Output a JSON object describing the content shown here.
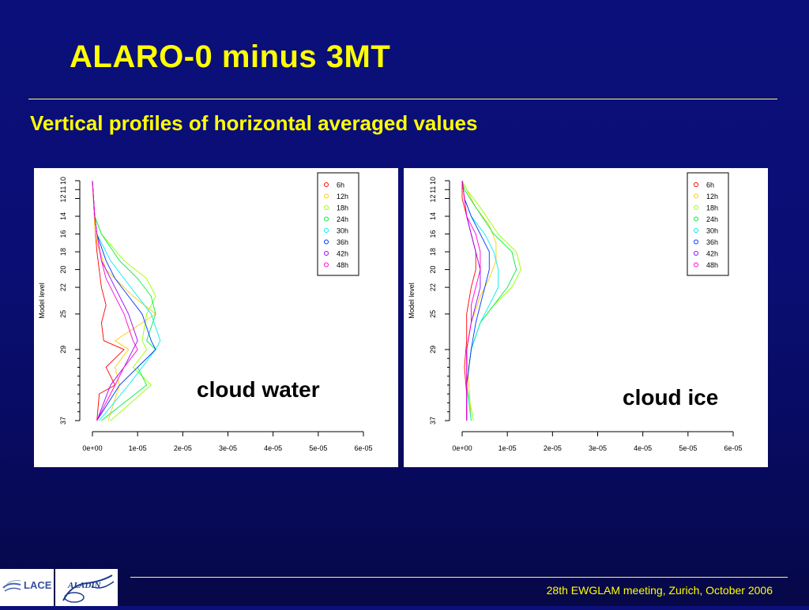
{
  "slide": {
    "title": "ALARO-0 minus 3MT",
    "subtitle": "Vertical profiles of horizontal averaged values",
    "footer": "28th EWGLAM meeting, Zurich, October 2006",
    "logos": {
      "left_text": "LACE",
      "left_subtext": "",
      "right_text": "ALADIN"
    }
  },
  "colors": {
    "background": "#0a0e73",
    "title": "#ffff00",
    "series": [
      "#ff0000",
      "#ffcc00",
      "#99ff00",
      "#00ee44",
      "#00eeee",
      "#0033ff",
      "#9900ff",
      "#ff00cc"
    ]
  },
  "chart_data": [
    {
      "type": "line",
      "label": "cloud water",
      "title": "",
      "xlabel": "",
      "ylabel": "Model level",
      "xlim": [
        0,
        6e-05
      ],
      "xticks": [
        "0e+00",
        "1e-05",
        "2e-05",
        "3e-05",
        "4e-05",
        "5e-05",
        "6e-05"
      ],
      "ylim": [
        10,
        37
      ],
      "yticks": [
        10,
        11,
        12,
        14,
        16,
        18,
        20,
        22,
        25,
        29,
        37
      ],
      "legend": "top-right",
      "series": [
        {
          "name": "6h",
          "points": [
            [
              0,
              10
            ],
            [
              5e-07,
              15
            ],
            [
              1e-06,
              18
            ],
            [
              2e-06,
              22
            ],
            [
              3e-06,
              24
            ],
            [
              2e-06,
              26
            ],
            [
              2.5e-06,
              28
            ],
            [
              7e-06,
              29
            ],
            [
              3e-06,
              31
            ],
            [
              5e-06,
              33
            ],
            [
              1.5e-06,
              34
            ],
            [
              1e-06,
              37
            ]
          ]
        },
        {
          "name": "12h",
          "points": [
            [
              0,
              10
            ],
            [
              5e-07,
              15
            ],
            [
              1e-06,
              17
            ],
            [
              3e-06,
              20
            ],
            [
              9e-06,
              23
            ],
            [
              1.4e-05,
              25
            ],
            [
              5e-06,
              28
            ],
            [
              8e-06,
              29
            ],
            [
              5e-06,
              31
            ],
            [
              6e-06,
              33
            ],
            [
              3.5e-06,
              37
            ]
          ]
        },
        {
          "name": "18h",
          "points": [
            [
              0,
              10
            ],
            [
              5e-07,
              14
            ],
            [
              2e-06,
              16
            ],
            [
              7e-06,
              19
            ],
            [
              1.2e-05,
              21
            ],
            [
              1.4e-05,
              23
            ],
            [
              1.2e-05,
              25
            ],
            [
              1.1e-05,
              28
            ],
            [
              1.2e-05,
              29
            ],
            [
              9e-06,
              31
            ],
            [
              1.3e-05,
              33
            ],
            [
              4e-06,
              37
            ]
          ]
        },
        {
          "name": "24h",
          "points": [
            [
              0,
              10
            ],
            [
              5e-07,
              14
            ],
            [
              2e-06,
              16
            ],
            [
              6e-06,
              19
            ],
            [
              1e-05,
              21
            ],
            [
              1.3e-05,
              23
            ],
            [
              1.4e-05,
              25
            ],
            [
              1.2e-05,
              28
            ],
            [
              1.4e-05,
              29
            ],
            [
              1e-05,
              31
            ],
            [
              1.2e-05,
              33
            ],
            [
              2e-06,
              37
            ]
          ]
        },
        {
          "name": "30h",
          "points": [
            [
              0,
              10
            ],
            [
              5e-07,
              14
            ],
            [
              1e-06,
              16
            ],
            [
              4e-06,
              19
            ],
            [
              7e-06,
              21
            ],
            [
              1e-05,
              23
            ],
            [
              1.3e-05,
              25
            ],
            [
              1.5e-05,
              28
            ],
            [
              1.4e-05,
              29
            ],
            [
              1.1e-05,
              31
            ],
            [
              8e-06,
              33
            ],
            [
              1.5e-06,
              37
            ]
          ]
        },
        {
          "name": "36h",
          "points": [
            [
              0,
              10
            ],
            [
              5e-07,
              14
            ],
            [
              1e-06,
              16
            ],
            [
              3e-06,
              19
            ],
            [
              5e-06,
              21
            ],
            [
              8e-06,
              23
            ],
            [
              1.1e-05,
              25
            ],
            [
              1.3e-05,
              28
            ],
            [
              1.4e-05,
              29
            ],
            [
              1e-05,
              31
            ],
            [
              6e-06,
              33
            ],
            [
              1e-06,
              37
            ]
          ]
        },
        {
          "name": "42h",
          "points": [
            [
              0,
              10
            ],
            [
              5e-07,
              14
            ],
            [
              1e-06,
              16
            ],
            [
              2e-06,
              19
            ],
            [
              4e-06,
              21
            ],
            [
              6e-06,
              23
            ],
            [
              8e-06,
              25
            ],
            [
              1e-05,
              28
            ],
            [
              9e-06,
              29
            ],
            [
              7e-06,
              31
            ],
            [
              4e-06,
              33
            ],
            [
              1e-06,
              37
            ]
          ]
        },
        {
          "name": "48h",
          "points": [
            [
              0,
              10
            ],
            [
              5e-07,
              14
            ],
            [
              1e-06,
              16
            ],
            [
              2e-06,
              19
            ],
            [
              3e-06,
              21
            ],
            [
              5e-06,
              23
            ],
            [
              7e-06,
              25
            ],
            [
              9e-06,
              28
            ],
            [
              1e-05,
              29
            ],
            [
              7e-06,
              31
            ],
            [
              5e-06,
              33
            ],
            [
              1e-06,
              37
            ]
          ]
        }
      ]
    },
    {
      "type": "line",
      "label": "cloud ice",
      "title": "",
      "xlabel": "",
      "ylabel": "Model level",
      "xlim": [
        0,
        6e-05
      ],
      "xticks": [
        "0e+00",
        "1e-05",
        "2e-05",
        "3e-05",
        "4e-05",
        "5e-05",
        "6e-05"
      ],
      "ylim": [
        10,
        37
      ],
      "yticks": [
        10,
        11,
        12,
        14,
        16,
        18,
        20,
        22,
        25,
        29,
        37
      ],
      "legend": "top-right",
      "series": [
        {
          "name": "6h",
          "points": [
            [
              0,
              10
            ],
            [
              0,
              12
            ],
            [
              1e-06,
              14
            ],
            [
              2e-06,
              16
            ],
            [
              3e-06,
              18
            ],
            [
              3e-06,
              20
            ],
            [
              2e-06,
              22
            ],
            [
              1e-06,
              25
            ],
            [
              1e-06,
              28
            ],
            [
              5e-07,
              31
            ],
            [
              1e-06,
              34
            ],
            [
              1e-06,
              37
            ]
          ]
        },
        {
          "name": "12h",
          "points": [
            [
              0,
              10
            ],
            [
              1e-06,
              11
            ],
            [
              3e-06,
              13
            ],
            [
              6e-06,
              15
            ],
            [
              7.5e-06,
              17
            ],
            [
              7.5e-06,
              19
            ],
            [
              6e-06,
              21
            ],
            [
              4e-06,
              23
            ],
            [
              2e-06,
              26
            ],
            [
              1e-06,
              29
            ],
            [
              1.5e-06,
              33
            ],
            [
              2e-06,
              37
            ]
          ]
        },
        {
          "name": "18h",
          "points": [
            [
              0,
              10
            ],
            [
              1e-06,
              11
            ],
            [
              4e-06,
              13
            ],
            [
              8e-06,
              16
            ],
            [
              1.2e-05,
              18
            ],
            [
              1.3e-05,
              20
            ],
            [
              1.1e-05,
              22
            ],
            [
              7e-06,
              24
            ],
            [
              4e-06,
              26
            ],
            [
              2e-06,
              29
            ],
            [
              1e-06,
              33
            ],
            [
              2.5e-06,
              37
            ]
          ]
        },
        {
          "name": "24h",
          "points": [
            [
              0,
              10
            ],
            [
              5e-07,
              11
            ],
            [
              3e-06,
              13
            ],
            [
              7e-06,
              16
            ],
            [
              1.1e-05,
              18
            ],
            [
              1.2e-05,
              20
            ],
            [
              1e-05,
              22
            ],
            [
              7e-06,
              24
            ],
            [
              4e-06,
              26
            ],
            [
              2e-06,
              29
            ],
            [
              1e-06,
              33
            ],
            [
              2e-06,
              37
            ]
          ]
        },
        {
          "name": "30h",
          "points": [
            [
              0,
              10
            ],
            [
              5e-07,
              12
            ],
            [
              2e-06,
              14
            ],
            [
              5e-06,
              16
            ],
            [
              7e-06,
              18
            ],
            [
              8e-06,
              20
            ],
            [
              8e-06,
              22
            ],
            [
              6e-06,
              24
            ],
            [
              4e-06,
              26
            ],
            [
              2e-06,
              29
            ],
            [
              1e-06,
              33
            ],
            [
              2e-06,
              37
            ]
          ]
        },
        {
          "name": "36h",
          "points": [
            [
              0,
              10
            ],
            [
              5e-07,
              12
            ],
            [
              2e-06,
              14
            ],
            [
              4e-06,
              16
            ],
            [
              6e-06,
              18
            ],
            [
              6e-06,
              20
            ],
            [
              5e-06,
              22
            ],
            [
              4e-06,
              24
            ],
            [
              3e-06,
              26
            ],
            [
              2e-06,
              29
            ],
            [
              1e-06,
              33
            ],
            [
              1e-06,
              37
            ]
          ]
        },
        {
          "name": "42h",
          "points": [
            [
              0,
              10
            ],
            [
              5e-07,
              12
            ],
            [
              1e-06,
              14
            ],
            [
              2e-06,
              16
            ],
            [
              3e-06,
              18
            ],
            [
              4e-06,
              20
            ],
            [
              4e-06,
              22
            ],
            [
              3e-06,
              24
            ],
            [
              2e-06,
              26
            ],
            [
              1e-06,
              29
            ],
            [
              1e-06,
              33
            ],
            [
              1e-06,
              37
            ]
          ]
        },
        {
          "name": "48h",
          "points": [
            [
              0,
              10
            ],
            [
              5e-07,
              12
            ],
            [
              1e-06,
              14
            ],
            [
              3e-06,
              16
            ],
            [
              4e-06,
              18
            ],
            [
              4e-06,
              20
            ],
            [
              3e-06,
              22
            ],
            [
              2e-06,
              24
            ],
            [
              2e-06,
              26
            ],
            [
              1e-06,
              29
            ],
            [
              1e-06,
              33
            ],
            [
              1e-06,
              37
            ]
          ]
        }
      ]
    }
  ]
}
